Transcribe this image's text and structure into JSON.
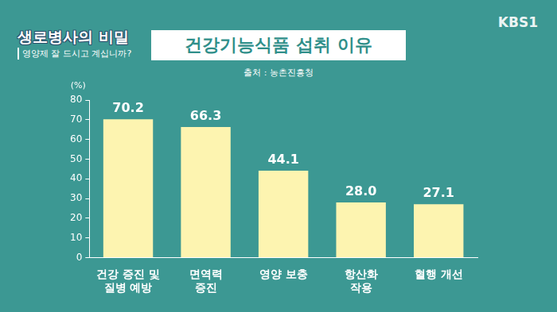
{
  "header": {
    "program": "생로병사의 비밀",
    "episode": "영양제 잘 드시고 계십니까?",
    "channel": "KBS1"
  },
  "chart_data": {
    "type": "bar",
    "title": "건강기능식품 섭취 이유",
    "subtitle": "출처 : 농촌진흥청",
    "y_label": "(%)",
    "categories": [
      "건강 증진 및 질병 예방",
      "면역력 증진",
      "영양 보충",
      "항산화 작용",
      "혈행 개선"
    ],
    "values": [
      70.2,
      66.3,
      44.1,
      28.0,
      27.1
    ],
    "value_labels": [
      "70.2",
      "66.3",
      "44.1",
      "28.0",
      "27.1"
    ],
    "color": "#fdf4b0",
    "ylim": [
      0,
      80
    ],
    "yticks": [
      0,
      10,
      20,
      30,
      40,
      50,
      60,
      70,
      80
    ],
    "grid": false,
    "data_labels": true
  }
}
